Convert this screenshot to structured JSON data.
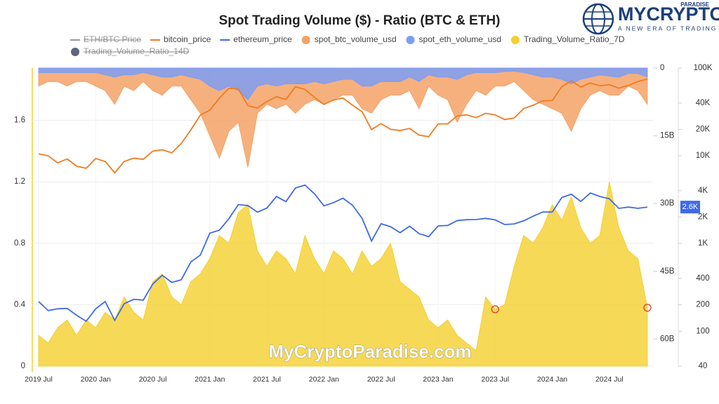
{
  "logo": {
    "name": "MYCRYPTO",
    "tag": "PARADISE",
    "slogan": "A NEW ERA OF TRADING"
  },
  "watermark": "MyCryptoParadise.com",
  "chart_data": {
    "type": "multi-axis",
    "title": "Spot Trading Volume ($) - Ratio (BTC & ETH)",
    "x": [
      "2019-07",
      "2019-08",
      "2019-09",
      "2019-10",
      "2019-11",
      "2019-12",
      "2020-01",
      "2020-02",
      "2020-03",
      "2020-04",
      "2020-05",
      "2020-06",
      "2020-07",
      "2020-08",
      "2020-09",
      "2020-10",
      "2020-11",
      "2020-12",
      "2021-01",
      "2021-02",
      "2021-03",
      "2021-04",
      "2021-05",
      "2021-06",
      "2021-07",
      "2021-08",
      "2021-09",
      "2021-10",
      "2021-11",
      "2021-12",
      "2022-01",
      "2022-02",
      "2022-03",
      "2022-04",
      "2022-05",
      "2022-06",
      "2022-07",
      "2022-08",
      "2022-09",
      "2022-10",
      "2022-11",
      "2022-12",
      "2023-01",
      "2023-02",
      "2023-03",
      "2023-04",
      "2023-05",
      "2023-06",
      "2023-07",
      "2023-08",
      "2023-09",
      "2023-10",
      "2023-11",
      "2023-12",
      "2024-01",
      "2024-02",
      "2024-03",
      "2024-04",
      "2024-05",
      "2024-06",
      "2024-07",
      "2024-08",
      "2024-09",
      "2024-10",
      "2024-11"
    ],
    "xlim": [
      "2019-07",
      "2024-11"
    ],
    "xticks": [
      {
        "value": "2019-07",
        "label": "2019 Jul"
      },
      {
        "value": "2020-01",
        "label": "2020 Jan"
      },
      {
        "value": "2020-07",
        "label": "2020 Jul"
      },
      {
        "value": "2021-01",
        "label": "2021 Jan"
      },
      {
        "value": "2021-07",
        "label": "2021 Jul"
      },
      {
        "value": "2022-01",
        "label": "2022 Jan"
      },
      {
        "value": "2022-07",
        "label": "2022 Jul"
      },
      {
        "value": "2023-01",
        "label": "2023 Jan"
      },
      {
        "value": "2023-07",
        "label": "2023 Jul"
      },
      {
        "value": "2024-01",
        "label": "2024 Jan"
      },
      {
        "value": "2024-07",
        "label": "2024 Jul"
      }
    ],
    "ylim": [
      0,
      1.94
    ],
    "yticks": [
      0,
      0.4,
      0.8,
      1.2,
      1.6
    ],
    "y2lim": [
      0,
      66000000000
    ],
    "y2_inverted": true,
    "y2ticks": [
      0,
      {
        "value": 15000000000,
        "label": "15B"
      },
      {
        "value": 30000000000,
        "label": "30B"
      },
      {
        "value": 45000000000,
        "label": "45B"
      },
      {
        "value": 60000000000,
        "label": "60B"
      }
    ],
    "y3lim": [
      40,
      100000
    ],
    "y3_log": true,
    "y3ticks": [
      {
        "value": 100000,
        "label": "100K"
      },
      {
        "value": 40000,
        "label": "40K"
      },
      {
        "value": 20000,
        "label": "20K"
      },
      {
        "value": 10000,
        "label": "10K"
      },
      {
        "value": 4000,
        "label": "4K"
      },
      {
        "value": 2000,
        "label": "2K"
      },
      {
        "value": 1000,
        "label": "1K"
      },
      400,
      200,
      100,
      40
    ],
    "grid": true,
    "series": [
      {
        "name": "ETH/BTC Price",
        "color": "#8c8c8c",
        "kind": "line",
        "hidden": true
      },
      {
        "name": "bitcoin_price",
        "color": "#f07c20",
        "kind": "line",
        "axis": "y3",
        "values": [
          10500,
          10000,
          8300,
          9200,
          7600,
          7200,
          9300,
          8600,
          6400,
          8600,
          9400,
          9100,
          11300,
          11700,
          10800,
          13800,
          19700,
          29000,
          33100,
          45200,
          58800,
          57700,
          37300,
          35000,
          41500,
          47100,
          43800,
          61300,
          57000,
          46300,
          38500,
          43200,
          45500,
          37700,
          31800,
          19900,
          23300,
          20000,
          19400,
          20500,
          17200,
          16500,
          23100,
          23100,
          28500,
          29300,
          27200,
          30500,
          29200,
          25900,
          27000,
          34500,
          37700,
          42300,
          42600,
          61200,
          71300,
          60600,
          67500,
          62700,
          64600,
          59000,
          63300,
          70200,
          75000
        ]
      },
      {
        "name": "ethereum_price",
        "color": "#3f6ae6",
        "kind": "line",
        "axis": "y3",
        "last_label": "2.6K",
        "values": [
          218,
          172,
          180,
          182,
          152,
          130,
          180,
          218,
          133,
          206,
          231,
          226,
          345,
          434,
          360,
          386,
          615,
          737,
          1312,
          1418,
          1918,
          2772,
          2707,
          2275,
          2536,
          3433,
          3001,
          4288,
          4631,
          3683,
          2688,
          2920,
          3282,
          2728,
          1942,
          1067,
          1679,
          1553,
          1328,
          1573,
          1296,
          1196,
          1585,
          1605,
          1822,
          1869,
          1874,
          1934,
          1857,
          1645,
          1671,
          1815,
          2050,
          2282,
          2283,
          3340,
          3645,
          3015,
          3762,
          3434,
          3232,
          2513,
          2602,
          2518,
          2600
        ]
      },
      {
        "name": "spot_btc_volume_usd",
        "color": "#f5a266",
        "kind": "area",
        "axis": "y2",
        "values": [
          4000000000.0,
          3000000000.0,
          3000000000.0,
          4000000000.0,
          3000000000.0,
          3000000000.0,
          4000000000.0,
          5000000000.0,
          8000000000.0,
          4000000000.0,
          5000000000.0,
          3000000000.0,
          5000000000.0,
          6000000000.0,
          4000000000.0,
          4000000000.0,
          7000000000.0,
          10000000000.0,
          15000000000.0,
          20000000000.0,
          14000000000.0,
          12000000000.0,
          22000000000.0,
          10000000000.0,
          8000000000.0,
          9000000000.0,
          8000000000.0,
          10000000000.0,
          8000000000.0,
          7000000000.0,
          8000000000.0,
          7000000000.0,
          6000000000.0,
          6000000000.0,
          9000000000.0,
          10000000000.0,
          7000000000.0,
          6000000000.0,
          6000000000.0,
          5000000000.0,
          9000000000.0,
          4000000000.0,
          6000000000.0,
          7000000000.0,
          12000000000.0,
          8000000000.0,
          5000000000.0,
          6000000000.0,
          4000000000.0,
          4000000000.0,
          3000000000.0,
          5000000000.0,
          7000000000.0,
          8000000000.0,
          9000000000.0,
          10000000000.0,
          14000000000.0,
          9000000000.0,
          6000000000.0,
          5000000000.0,
          6000000000.0,
          6000000000.0,
          4000000000.0,
          5000000000.0,
          8000000000.0
        ]
      },
      {
        "name": "spot_eth_volume_usd",
        "color": "#7d9ef5",
        "kind": "area",
        "axis": "y2",
        "values": [
          1000000000.0,
          1000000000.0,
          1000000000.0,
          1000000000.0,
          1000000000.0,
          1000000000.0,
          1000000000.0,
          1500000000.0,
          2000000000.0,
          1500000000.0,
          1500000000.0,
          1000000000.0,
          1500000000.0,
          2000000000.0,
          2000000000.0,
          1500000000.0,
          2000000000.0,
          2500000000.0,
          4000000000.0,
          5000000000.0,
          4000000000.0,
          5000000000.0,
          7000000000.0,
          4000000000.0,
          3500000000.0,
          4000000000.0,
          3500000000.0,
          3500000000.0,
          3500000000.0,
          3000000000.0,
          3500000000.0,
          3000000000.0,
          2500000000.0,
          2500000000.0,
          4000000000.0,
          4000000000.0,
          3000000000.0,
          3000000000.0,
          3000000000.0,
          2000000000.0,
          3000000000.0,
          1500000000.0,
          2000000000.0,
          2000000000.0,
          2500000000.0,
          1500000000.0,
          1000000000.0,
          1000000000.0,
          1000000000.0,
          800000000.0,
          700000000.0,
          1000000000.0,
          1500000000.0,
          2000000000.0,
          2000000000.0,
          2500000000.0,
          3500000000.0,
          2500000000.0,
          2000000000.0,
          1500000000.0,
          1800000000.0,
          2000000000.0,
          1200000000.0,
          1200000000.0,
          2000000000.0
        ]
      },
      {
        "name": "Trading_Volume_Ratio_7D",
        "color": "#f5cf2e",
        "kind": "area",
        "axis": "y",
        "highlight": [
          48,
          64
        ],
        "values": [
          0.2,
          0.15,
          0.25,
          0.3,
          0.2,
          0.3,
          0.25,
          0.35,
          0.3,
          0.45,
          0.35,
          0.3,
          0.55,
          0.6,
          0.45,
          0.4,
          0.55,
          0.6,
          0.7,
          0.85,
          0.8,
          1.0,
          1.05,
          0.75,
          0.65,
          0.75,
          0.7,
          0.6,
          0.85,
          0.7,
          0.6,
          0.75,
          0.7,
          0.6,
          0.75,
          0.65,
          0.7,
          0.8,
          0.55,
          0.5,
          0.45,
          0.3,
          0.25,
          0.3,
          0.2,
          0.15,
          0.1,
          0.45,
          0.37,
          0.4,
          0.65,
          0.85,
          0.8,
          0.9,
          1.05,
          0.95,
          1.1,
          0.9,
          0.8,
          0.85,
          1.2,
          0.9,
          0.75,
          0.7,
          0.38
        ]
      },
      {
        "name": "Trading_Volume_Ratio_14D",
        "color": "#5a6680",
        "kind": "area",
        "hidden": true
      }
    ]
  }
}
